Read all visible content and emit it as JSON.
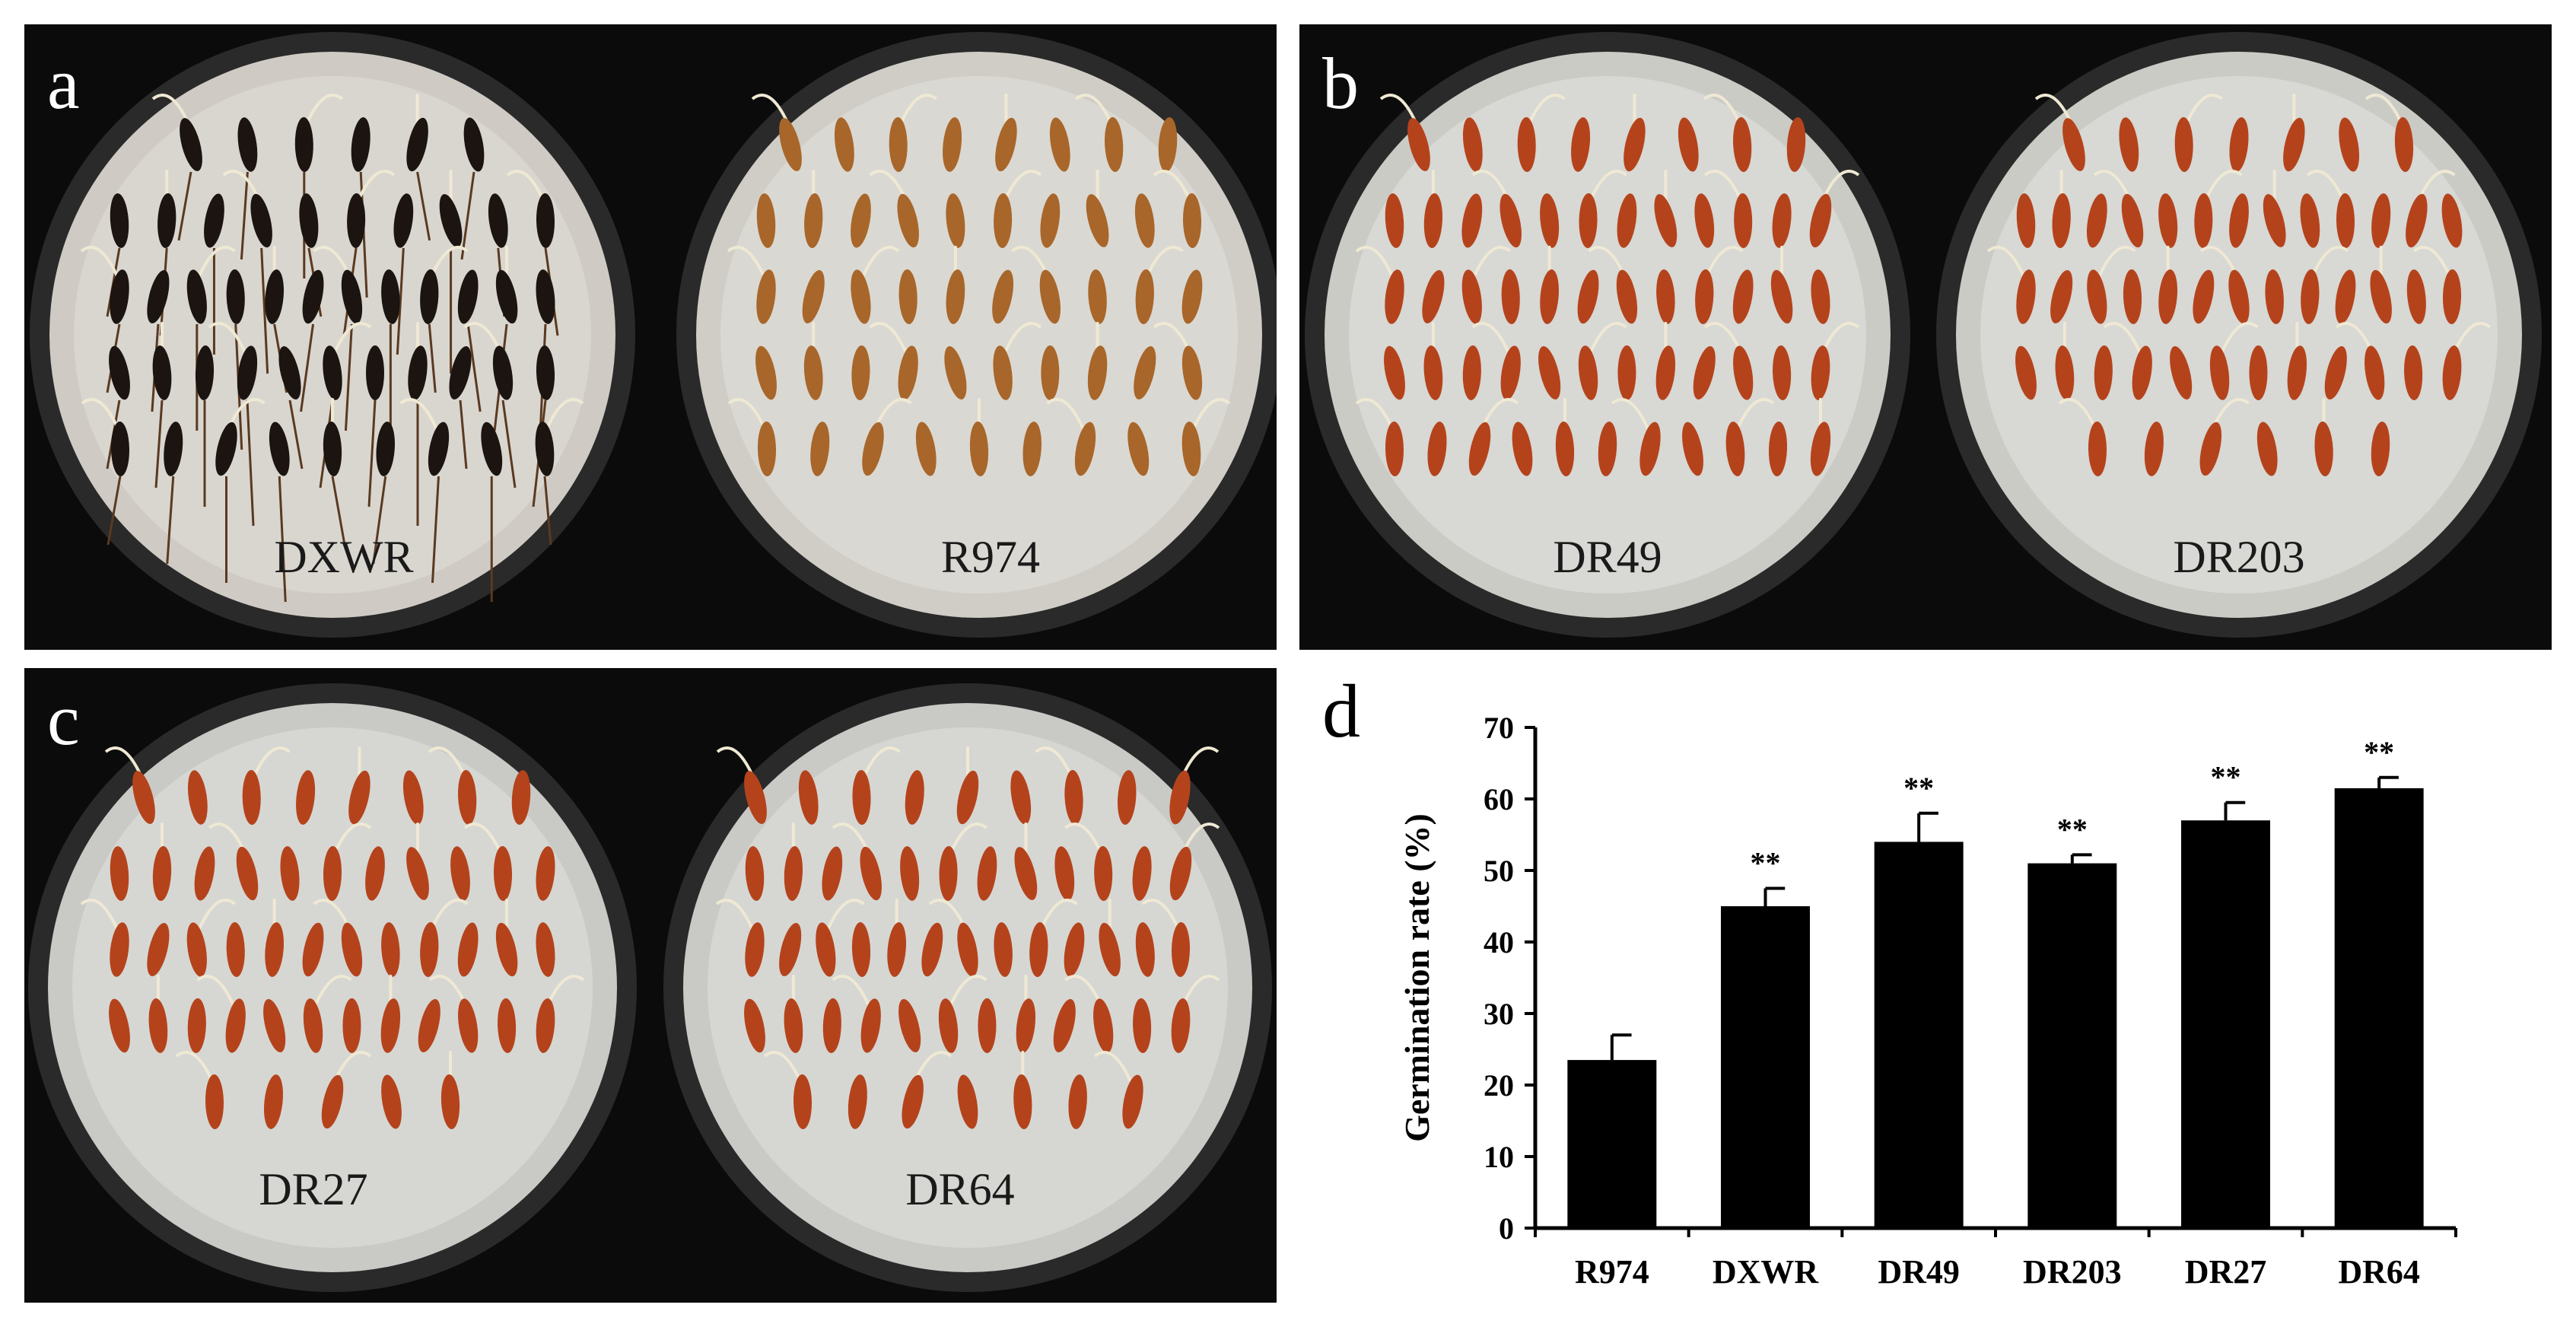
{
  "panels": {
    "a": {
      "label": "a",
      "dishes": [
        "DXWR",
        "R974"
      ]
    },
    "b": {
      "label": "b",
      "dishes": [
        "DR49",
        "DR203"
      ]
    },
    "c": {
      "label": "c",
      "dishes": [
        "DR27",
        "DR64"
      ]
    },
    "d": {
      "label": "d"
    }
  },
  "colors": {
    "background": "#0b0b0b",
    "dish_fill": "#d4d2cc",
    "seed_black": "#1b1410",
    "seed_tan": "#a8662a",
    "seed_red": "#b4431c",
    "bar": "#000000"
  },
  "chart_data": {
    "type": "bar",
    "title": "",
    "xlabel": "",
    "ylabel": "Germination rate (%)",
    "ylim": [
      0,
      70
    ],
    "yticks": [
      0,
      10,
      20,
      30,
      40,
      50,
      60,
      70
    ],
    "categories": [
      "R974",
      "DXWR",
      "DR49",
      "DR203",
      "DR27",
      "DR64"
    ],
    "values": [
      23.5,
      45,
      54,
      51,
      57,
      61.5
    ],
    "errors": [
      3.5,
      2.5,
      4,
      1.2,
      2.5,
      1.5
    ],
    "annotations": [
      "",
      "**",
      "**",
      "**",
      "**",
      "**"
    ]
  }
}
